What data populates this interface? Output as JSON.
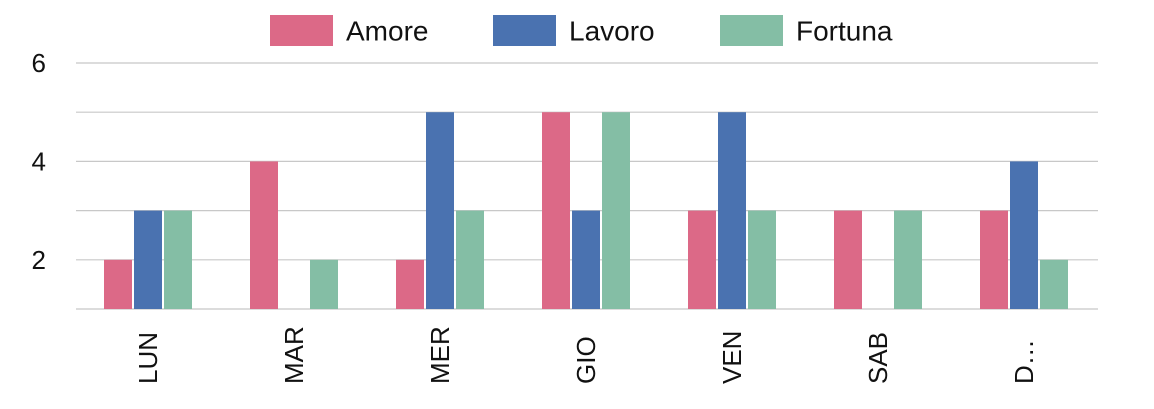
{
  "chart_data": {
    "type": "bar",
    "categories": [
      "LUN",
      "MAR",
      "MER",
      "GIO",
      "VEN",
      "SAB",
      "D..."
    ],
    "series": [
      {
        "name": "Amore",
        "color": "#DC6987",
        "values": [
          2,
          4,
          2,
          5,
          3,
          3,
          3
        ]
      },
      {
        "name": "Lavoro",
        "color": "#4A72B0",
        "values": [
          3,
          1,
          5,
          3,
          5,
          1,
          4
        ]
      },
      {
        "name": "Fortuna",
        "color": "#84BEA5",
        "values": [
          3,
          2,
          3,
          5,
          3,
          3,
          2
        ]
      }
    ],
    "ylim": [
      1,
      6
    ],
    "yticks": [
      2,
      4,
      6
    ],
    "grid": true,
    "gridlines": [
      1,
      2,
      3,
      4,
      5,
      6
    ],
    "legend_position": "top-center",
    "xtick_rotation": "vertical"
  }
}
